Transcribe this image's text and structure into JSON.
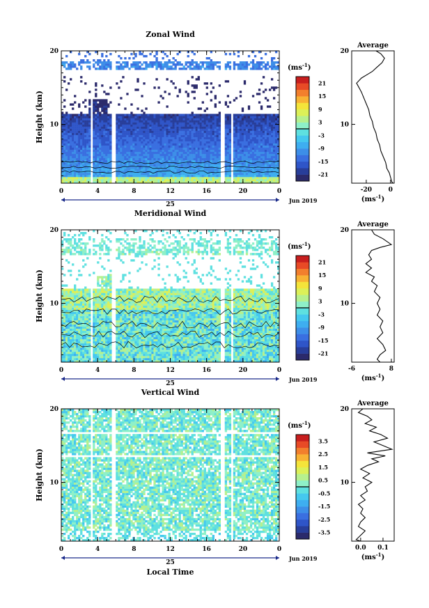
{
  "chart_data": [
    {
      "type": "heatmap",
      "title": "Zonal Wind",
      "ylabel": "Height (km)",
      "ylim": [
        2,
        20
      ],
      "xlim": [
        0,
        24
      ],
      "x_ticks": [
        "0",
        "4",
        "8",
        "12",
        "16",
        "20",
        "0"
      ],
      "y_ticks": [
        "10",
        "20"
      ],
      "date_label": "25",
      "date_suffix": "Jun 2019",
      "colorbar": {
        "unit": "(ms",
        "unit_exp": "-1",
        "unit_close": ")",
        "ticks": [
          "21",
          "15",
          "9",
          "3",
          "-3",
          "-9",
          "-15",
          "-21"
        ],
        "range": [
          -24,
          24
        ]
      },
      "profile": {
        "title": "Average",
        "x_ticks": [
          "-20",
          "0"
        ],
        "xlim": [
          -32,
          3
        ],
        "unit": "(ms",
        "unit_exp": "-1",
        "unit_close": ")",
        "points": [
          [
            -12,
            20
          ],
          [
            -8,
            19.6
          ],
          [
            -5,
            19
          ],
          [
            -7,
            18.4
          ],
          [
            -11,
            17.8
          ],
          [
            -15,
            17.2
          ],
          [
            -19,
            16.8
          ],
          [
            -24,
            16.3
          ],
          [
            -28,
            15.6
          ],
          [
            -26,
            15
          ],
          [
            -24,
            14.4
          ],
          [
            -22,
            13.6
          ],
          [
            -20,
            12.8
          ],
          [
            -18,
            12
          ],
          [
            -17,
            11.2
          ],
          [
            -15,
            10.4
          ],
          [
            -14,
            9.6
          ],
          [
            -12,
            8.8
          ],
          [
            -11,
            8
          ],
          [
            -9,
            7.2
          ],
          [
            -8,
            6.4
          ],
          [
            -6,
            5.6
          ],
          [
            -4,
            4.8
          ],
          [
            -3,
            4
          ],
          [
            -1,
            3.4
          ],
          [
            0,
            2.8
          ],
          [
            1,
            2.2
          ],
          [
            2,
            2
          ]
        ]
      }
    },
    {
      "type": "heatmap",
      "title": "Meridional Wind",
      "ylabel": "Height (km)",
      "ylim": [
        2,
        20
      ],
      "xlim": [
        0,
        24
      ],
      "x_ticks": [
        "0",
        "4",
        "8",
        "12",
        "16",
        "20",
        "0"
      ],
      "y_ticks": [
        "10",
        "20"
      ],
      "date_label": "25",
      "date_suffix": "Jun 2019",
      "colorbar": {
        "unit": "(ms",
        "unit_exp": "-1",
        "unit_close": ")",
        "ticks": [
          "21",
          "15",
          "9",
          "3",
          "-3",
          "-9",
          "-15",
          "-21"
        ],
        "range": [
          -24,
          24
        ]
      },
      "profile": {
        "title": "Average",
        "x_ticks": [
          "-6",
          "8"
        ],
        "xlim": [
          -6,
          9
        ],
        "unit": "(ms",
        "unit_exp": "-1",
        "unit_close": ")",
        "points": [
          [
            1,
            20
          ],
          [
            2,
            19.4
          ],
          [
            5,
            18.8
          ],
          [
            8,
            18
          ],
          [
            4,
            17.6
          ],
          [
            1,
            17.2
          ],
          [
            0,
            16.6
          ],
          [
            1,
            16
          ],
          [
            -1,
            15.4
          ],
          [
            1,
            14.8
          ],
          [
            -1,
            14.2
          ],
          [
            2,
            13.6
          ],
          [
            1,
            13
          ],
          [
            3,
            12.4
          ],
          [
            2,
            11.6
          ],
          [
            4,
            10.8
          ],
          [
            3,
            10
          ],
          [
            4,
            9.2
          ],
          [
            3,
            8.4
          ],
          [
            5,
            7.6
          ],
          [
            4,
            6.8
          ],
          [
            5,
            6
          ],
          [
            3,
            5.2
          ],
          [
            5,
            4.4
          ],
          [
            6,
            3.6
          ],
          [
            4,
            3
          ],
          [
            3,
            2.4
          ],
          [
            4,
            2
          ]
        ]
      }
    },
    {
      "type": "heatmap",
      "title": "Vertical Wind",
      "ylabel": "Height (km)",
      "xlabel": "Local Time",
      "ylim": [
        2,
        20
      ],
      "xlim": [
        0,
        24
      ],
      "x_ticks": [
        "0",
        "4",
        "8",
        "12",
        "16",
        "20",
        "0"
      ],
      "y_ticks": [
        "10",
        "20"
      ],
      "date_label": "25",
      "date_suffix": "Jun 2019",
      "colorbar": {
        "unit": "(ms",
        "unit_exp": "-1",
        "unit_close": ")",
        "ticks": [
          "3.5",
          "2.5",
          "1.5",
          "0.5",
          "-0.5",
          "-1.5",
          "-2.5",
          "-3.5"
        ],
        "range": [
          -4,
          4
        ]
      },
      "profile": {
        "title": "Average",
        "x_ticks": [
          "0.0",
          "0.1"
        ],
        "xlim": [
          -0.04,
          0.15
        ],
        "unit": "(ms",
        "unit_exp": "-1",
        "unit_close": ")",
        "points": [
          [
            0.01,
            20
          ],
          [
            -0.01,
            19.5
          ],
          [
            0.03,
            19
          ],
          [
            0.05,
            18.5
          ],
          [
            0.02,
            18
          ],
          [
            0.07,
            17.5
          ],
          [
            0.04,
            17
          ],
          [
            0.09,
            16.5
          ],
          [
            0.12,
            16
          ],
          [
            0.06,
            15.5
          ],
          [
            0.1,
            15
          ],
          [
            0.14,
            14.5
          ],
          [
            0.03,
            14
          ],
          [
            0.11,
            13.6
          ],
          [
            0.05,
            13.2
          ],
          [
            0.08,
            12.8
          ],
          [
            0.03,
            12.3
          ],
          [
            0.0,
            11.8
          ],
          [
            0.04,
            11.2
          ],
          [
            0.01,
            10.6
          ],
          [
            0.05,
            10
          ],
          [
            0.02,
            9.4
          ],
          [
            0.03,
            8.8
          ],
          [
            0.0,
            8.2
          ],
          [
            0.02,
            7.6
          ],
          [
            -0.01,
            7
          ],
          [
            0.01,
            6.4
          ],
          [
            0.0,
            5.8
          ],
          [
            0.02,
            5.2
          ],
          [
            0.0,
            4.6
          ],
          [
            -0.01,
            4
          ],
          [
            0.02,
            3.4
          ],
          [
            0.0,
            2.8
          ],
          [
            -0.02,
            2.2
          ],
          [
            0.0,
            2
          ]
        ]
      }
    }
  ]
}
